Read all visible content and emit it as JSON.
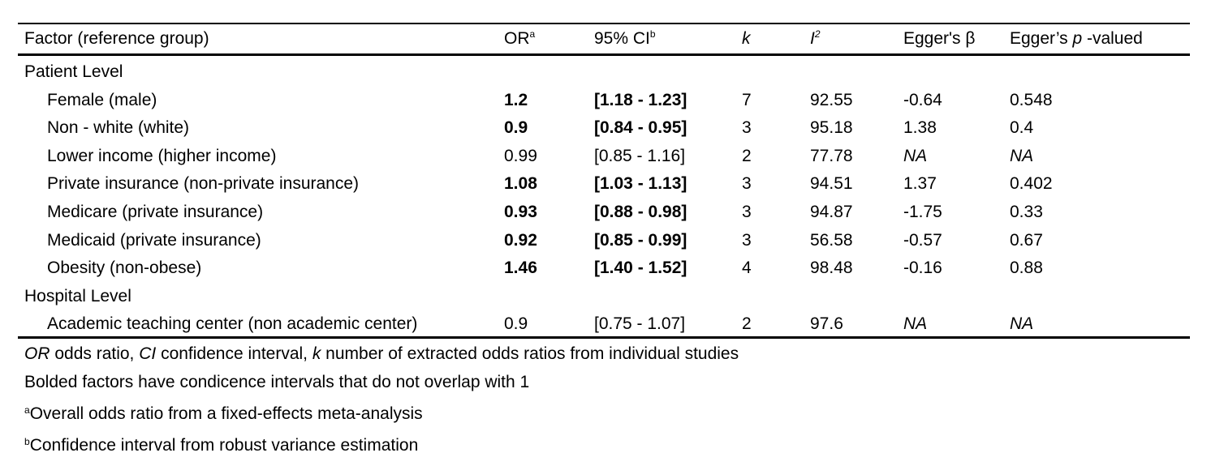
{
  "header": {
    "factor": "Factor (reference group)",
    "or": "OR",
    "or_sup": "a",
    "ci": "95% CI",
    "ci_sup": "b",
    "k": "k",
    "i2": "I",
    "i2_sup": "2",
    "egger_beta": "Egger's β",
    "egger_p_pre": "Egger’s ",
    "egger_p_it": "p",
    "egger_p_post": " -valued"
  },
  "sections": [
    {
      "title": "Patient Level",
      "rows": [
        {
          "factor": "Female (male)",
          "or": "1.2",
          "ci": "[1.18 - 1.23]",
          "k": "7",
          "i2": "92.55",
          "beta": "-0.64",
          "p": "0.548",
          "bold": true
        },
        {
          "factor": "Non - white (white)",
          "or": "0.9",
          "ci": "[0.84 - 0.95]",
          "k": "3",
          "i2": "95.18",
          "beta": "1.38",
          "p": "0.4",
          "bold": true
        },
        {
          "factor": "Lower income (higher income)",
          "or": "0.99",
          "ci": "[0.85 - 1.16]",
          "k": "2",
          "i2": "77.78",
          "beta": "NA",
          "p": "NA",
          "bold": false
        },
        {
          "factor": "Private insurance (non-private insurance)",
          "or": "1.08",
          "ci": "[1.03 - 1.13]",
          "k": "3",
          "i2": "94.51",
          "beta": "1.37",
          "p": "0.402",
          "bold": true
        },
        {
          "factor": "Medicare (private insurance)",
          "or": "0.93",
          "ci": "[0.88 - 0.98]",
          "k": "3",
          "i2": "94.87",
          "beta": "-1.75",
          "p": "0.33",
          "bold": true
        },
        {
          "factor": "Medicaid (private insurance)",
          "or": "0.92",
          "ci": "[0.85 - 0.99]",
          "k": "3",
          "i2": "56.58",
          "beta": "-0.57",
          "p": "0.67",
          "bold": true
        },
        {
          "factor": "Obesity (non-obese)",
          "or": "1.46",
          "ci": "[1.40 - 1.52]",
          "k": "4",
          "i2": "98.48",
          "beta": "-0.16",
          "p": "0.88",
          "bold": true
        }
      ]
    },
    {
      "title": "Hospital Level",
      "rows": [
        {
          "factor": "Academic teaching center (non academic center)",
          "or": "0.9",
          "ci": "[0.75 - 1.07]",
          "k": "2",
          "i2": "97.6",
          "beta": "NA",
          "p": "NA",
          "bold": false
        }
      ]
    }
  ],
  "footnotes": {
    "abbrev": {
      "or_term": "OR",
      "or_def": " odds ratio, ",
      "ci_term": "CI",
      "ci_def": " confidence interval, ",
      "k_term": "k",
      "k_def": " number of extracted odds ratios from individual studies"
    },
    "bold_note": "Bolded factors have condicence intervals that do not overlap with 1",
    "a_mark": "a",
    "a_text": "Overall odds ratio from a fixed-effects meta-analysis",
    "b_mark": "b",
    "b_text": "Confidence interval from robust variance estimation"
  }
}
